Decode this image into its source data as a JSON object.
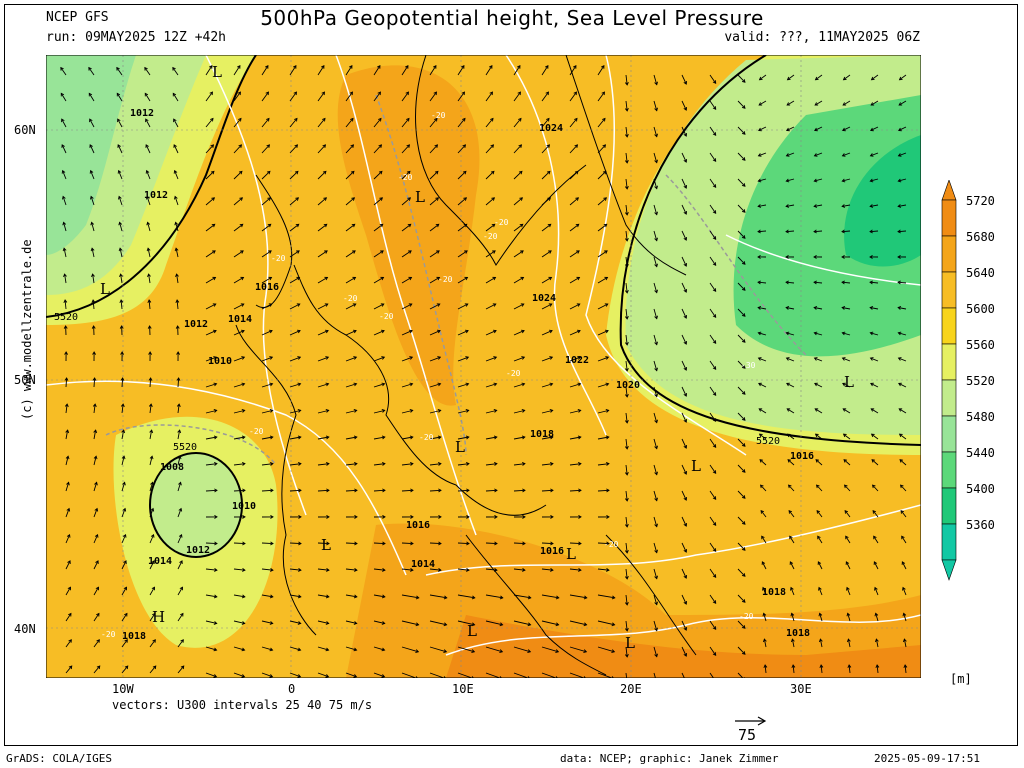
{
  "header": {
    "model": "NCEP GFS",
    "run": "run: 09MAY2025 12Z +42h",
    "title": "500hPa Geopotential height, Sea Level Pressure",
    "valid": "valid: ???, 11MAY2025 06Z"
  },
  "axes": {
    "lat_labels": [
      "60N",
      "50N",
      "40N"
    ],
    "lon_labels": [
      "10W",
      "0",
      "10E",
      "20E",
      "30E"
    ]
  },
  "colorbar": {
    "levels": [
      "5720",
      "5680",
      "5640",
      "5600",
      "5560",
      "5520",
      "5480",
      "5440",
      "5400",
      "5360"
    ],
    "colors": [
      "#f08c14",
      "#f4a51a",
      "#f7bd25",
      "#f8d41c",
      "#e6f062",
      "#c2ec8c",
      "#98e498",
      "#5cd87a",
      "#20c878",
      "#12c8a4"
    ],
    "unit": "[m]"
  },
  "map": {
    "pressure_labels": [
      "1012",
      "1012",
      "1016",
      "1012",
      "1014",
      "1010",
      "1008",
      "1010",
      "1012",
      "1014",
      "1016",
      "1024",
      "1024",
      "1022",
      "1020",
      "1018",
      "1016",
      "1014",
      "1016",
      "1018",
      "1018",
      "1018"
    ],
    "temp_labels": [
      "-20",
      "-20",
      "-20",
      "-20",
      "-20",
      "-20",
      "-20",
      "-20",
      "-20",
      "-20",
      "-20",
      "-20",
      "-20",
      "-20",
      "-30"
    ],
    "height_labels": [
      "5520",
      "5520",
      "5520"
    ],
    "lows": [
      "L",
      "L",
      "L",
      "L",
      "L",
      "L",
      "L",
      "L",
      "L",
      "L"
    ],
    "highs": [
      "H"
    ]
  },
  "footer": {
    "vectors": "vectors: U300 intervals 25 40 75 m/s",
    "ref_value": "75",
    "grads": "GrADS: COLA/IGES",
    "credit": "data: NCEP; graphic: Janek Zimmer",
    "timestamp": "2025-05-09-17:51"
  },
  "watermark": "(c)  www.modellzentrale.de"
}
